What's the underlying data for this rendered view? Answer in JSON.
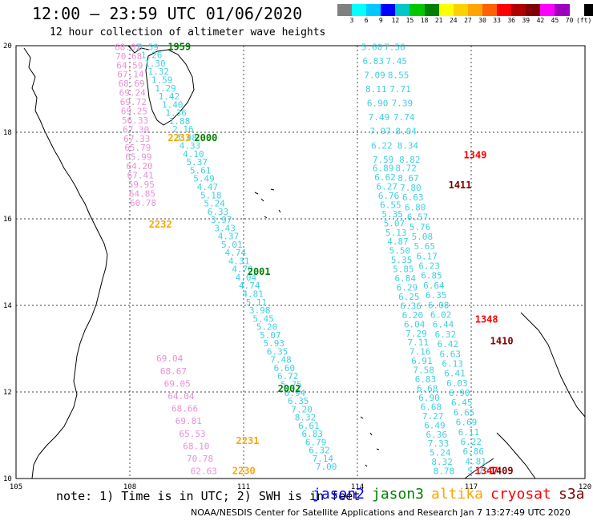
{
  "header": {
    "title": "12:00 – 23:59 UTC 01/06/2020",
    "subtitle": "12 hour collection of altimeter wave heights"
  },
  "colorbar": {
    "colors": [
      "#808080",
      "#00ffff",
      "#00c8ff",
      "#0000ff",
      "#00c8c8",
      "#00c800",
      "#008000",
      "#ffff00",
      "#ffd000",
      "#ffa500",
      "#ff6000",
      "#ff0000",
      "#b00000",
      "#800000",
      "#ff00ff",
      "#a000c0",
      "#ffffff",
      "#000000"
    ],
    "labels": [
      "3",
      "6",
      "9",
      "12",
      "15",
      "18",
      "21",
      "24",
      "27",
      "30",
      "33",
      "36",
      "39",
      "42",
      "45",
      "70",
      "(ft)"
    ]
  },
  "axes": {
    "lon_min": 105,
    "lon_max": 120,
    "lat_min": 10,
    "lat_max": 20,
    "lon_ticks": [
      105,
      108,
      111,
      114,
      117,
      120
    ],
    "lat_ticks": [
      20,
      18,
      16,
      14,
      12,
      10
    ],
    "lon_labels": [
      "105",
      "108",
      "111",
      "114",
      "117",
      "120"
    ],
    "lat_labels": [
      "20",
      "18",
      "16",
      "14",
      "12",
      "10"
    ]
  },
  "chart_data": {
    "type": "scatter",
    "tracks": [
      {
        "mission": "jason3",
        "color": "#40d0e0",
        "lon0": 108.2,
        "lat0": 19.9,
        "lon1": 112.9,
        "lat1": 10.2,
        "values": [
          "0.59",
          "1.26",
          "1.30",
          "1.32",
          "1.59",
          "1.29",
          "1.42",
          "1.40",
          "1.36",
          "1.88",
          "2.16",
          "3.48",
          "4.33",
          "4.10",
          "5.37",
          "5.61",
          "5.49",
          "4.47",
          "5.18",
          "5.24",
          "6.33",
          "3.97",
          "3.43",
          "4.37",
          "5.01",
          "4.74",
          "4.31",
          "4.70",
          "4.04",
          "4.74",
          "4.81",
          "5.11",
          "3.98",
          "5.45",
          "5.20",
          "5.07",
          "5.93",
          "6.35",
          "7.48",
          "6.60",
          "6.72",
          "5.75",
          "6.94",
          "6.35",
          "7.20",
          "8.32",
          "6.61",
          "6.83",
          "6.79",
          "6.32",
          "7.14",
          "7.00"
        ]
      },
      {
        "mission": "cryosat",
        "color": "#e890d8",
        "lon0": 107.6,
        "lat0": 19.9,
        "lon1": 108.0,
        "lat1": 16.3,
        "values": [
          "68.02",
          "70.68",
          "64.59",
          "67.14",
          "68.69",
          "69.24",
          "69.72",
          "69.25",
          "56.33",
          "67.30",
          "67.33",
          "65.79",
          "65.99",
          "64.20",
          "67.41",
          "59.95",
          "64.85",
          "60.78"
        ]
      },
      {
        "mission": "cryosat",
        "color": "#e890d8",
        "lon0": 108.7,
        "lat0": 12.7,
        "lon1": 109.6,
        "lat1": 10.1,
        "values": [
          "69.04",
          "68.67",
          "69.05",
          "64.04",
          "68.66",
          "69.81",
          "65.53",
          "68.10",
          "70.78",
          "62.63"
        ]
      },
      {
        "mission": "jason3",
        "color": "#40d0e0",
        "lon0": 114.1,
        "lat0": 19.9,
        "lon1": 114.4,
        "lat1": 17.3,
        "values": [
          "5.60",
          "6.83",
          "7.09",
          "8.11",
          "6.90",
          "7.49",
          "7.97",
          "6.22",
          "7.59"
        ]
      },
      {
        "mission": "jason3",
        "color": "#40d0e0",
        "lon0": 114.7,
        "lat0": 19.9,
        "lon1": 115.1,
        "lat1": 17.3,
        "values": [
          "7.56",
          "7.45",
          "8.55",
          "7.71",
          "7.39",
          "7.74",
          "8.04",
          "8.34",
          "8.82"
        ]
      },
      {
        "mission": "jason3",
        "color": "#40d0e0",
        "lon0": 114.4,
        "lat0": 17.1,
        "lon1": 116.0,
        "lat1": 10.1,
        "values": [
          "6.89",
          "6.62",
          "6.27",
          "6.76",
          "6.55",
          "5.35",
          "5.07",
          "5.13",
          "4.87",
          "5.50",
          "5.35",
          "5.85",
          "6.84",
          "6.29",
          "6.25",
          "6.36",
          "6.20",
          "6.04",
          "7.29",
          "7.11",
          "7.16",
          "6.91",
          "7.58",
          "6.83",
          "6.68",
          "6.90",
          "6.68",
          "7.27",
          "6.49",
          "6.36",
          "7.33",
          "5.24",
          "8.32",
          "8.78"
        ]
      },
      {
        "mission": "jason3",
        "color": "#40d0e0",
        "lon0": 115.0,
        "lat0": 17.1,
        "lon1": 116.9,
        "lat1": 10.1,
        "values": [
          "8.72",
          "8.67",
          "7.80",
          "6.63",
          "6.80",
          "6.57",
          "5.76",
          "5.08",
          "5.65",
          "6.17",
          "6.23",
          "6.85",
          "6.64",
          "6.35",
          "6.08",
          "6.02",
          "6.44",
          "6.32",
          "6.42",
          "6.63",
          "6.13",
          "6.41",
          "6.03",
          "6.90",
          "6.45",
          "6.65",
          "6.69",
          "6.11",
          "6.22",
          "6.86",
          "4.81",
          "5.79"
        ]
      }
    ],
    "time_labels": [
      {
        "text": "1959",
        "color": "#008000",
        "lon": 109.0,
        "lat": 19.9
      },
      {
        "text": "2233",
        "color": "#ffa500",
        "lon": 109.0,
        "lat": 17.8
      },
      {
        "text": "2000",
        "color": "#008000",
        "lon": 109.7,
        "lat": 17.8
      },
      {
        "text": "1349",
        "color": "#ff0000",
        "lon": 116.8,
        "lat": 17.4
      },
      {
        "text": "1411",
        "color": "#800000",
        "lon": 116.4,
        "lat": 16.7
      },
      {
        "text": "2232",
        "color": "#ffa500",
        "lon": 108.5,
        "lat": 15.8
      },
      {
        "text": "2001",
        "color": "#008000",
        "lon": 111.1,
        "lat": 14.7
      },
      {
        "text": "1348",
        "color": "#ff0000",
        "lon": 117.1,
        "lat": 13.6
      },
      {
        "text": "1410",
        "color": "#800000",
        "lon": 117.5,
        "lat": 13.1
      },
      {
        "text": "2002",
        "color": "#008000",
        "lon": 111.9,
        "lat": 12.0
      },
      {
        "text": "2231",
        "color": "#ffa500",
        "lon": 110.8,
        "lat": 10.8
      },
      {
        "text": "2230",
        "color": "#ffa500",
        "lon": 110.7,
        "lat": 10.1
      },
      {
        "text": "1347",
        "color": "#ff0000",
        "lon": 117.1,
        "lat": 10.1
      },
      {
        "text": "1409",
        "color": "#800000",
        "lon": 117.5,
        "lat": 10.1
      }
    ]
  },
  "footer": {
    "note": "note: 1) Time is in UTC; 2) SWH is in feet",
    "legend": [
      {
        "name": "jason2",
        "color": "#0000ff"
      },
      {
        "name": "jason3",
        "color": "#008000"
      },
      {
        "name": "altika",
        "color": "#ffa500"
      },
      {
        "name": "cryosat",
        "color": "#ff0000"
      },
      {
        "name": "s3a",
        "color": "#800000"
      }
    ],
    "credit": "NOAA/NESDIS Center for Satellite Applications and Research   Jan  7 13:27:49 UTC 2020"
  }
}
